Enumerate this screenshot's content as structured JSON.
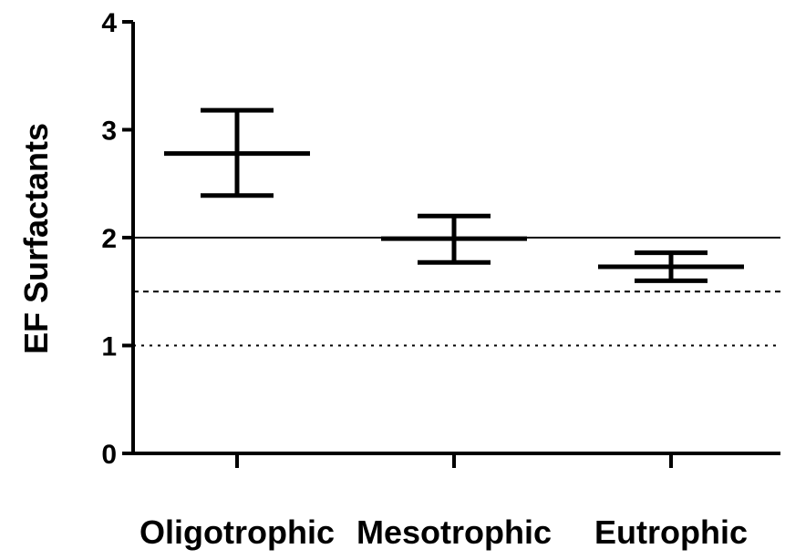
{
  "chart_data": {
    "type": "errorbar",
    "ylabel": "EF Surfactants",
    "xlabel": "",
    "ylim": [
      0,
      4
    ],
    "yticks": [
      "0",
      "1",
      "2",
      "3",
      "4"
    ],
    "categories": [
      "Oligotrophic",
      "Mesotrophic",
      "Eutrophic"
    ],
    "series": [
      {
        "mean": [
          2.78,
          1.99,
          1.73
        ],
        "upper": [
          3.18,
          2.2,
          1.86
        ],
        "lower": [
          2.39,
          1.77,
          1.6
        ]
      }
    ],
    "reference_lines": [
      {
        "y": 2.0,
        "style": "solid"
      },
      {
        "y": 1.5,
        "style": "dashed"
      },
      {
        "y": 1.0,
        "style": "dotted"
      }
    ],
    "grid": false,
    "legend": "none"
  }
}
